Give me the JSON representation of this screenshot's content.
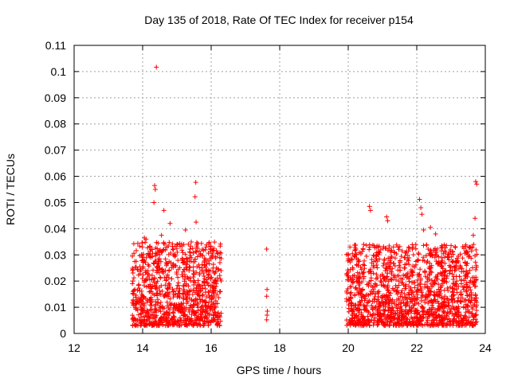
{
  "chart_data": {
    "type": "scatter",
    "title": "Day 135 of 2018, Rate Of TEC Index for receiver p154",
    "xlabel": "GPS time / hours",
    "ylabel": "ROTI / TECUs",
    "xlim": [
      12,
      24
    ],
    "ylim": [
      0,
      0.11
    ],
    "xticks": [
      12,
      14,
      16,
      18,
      20,
      22,
      24
    ],
    "xtick_labels": [
      "12",
      "14",
      "16",
      "18",
      "20",
      "22",
      "24"
    ],
    "yticks": [
      0,
      0.01,
      0.02,
      0.03,
      0.04,
      0.05,
      0.06,
      0.07,
      0.08,
      0.09,
      0.1,
      0.11
    ],
    "ytick_labels": [
      "0",
      "0.01",
      "0.02",
      "0.03",
      "0.04",
      "0.05",
      "0.06",
      "0.07",
      "0.08",
      "0.09",
      "0.1",
      "0.11"
    ],
    "grid": true,
    "marker": "+",
    "color": "#ff0000",
    "series": [
      {
        "name": "ROTI",
        "x": [
          14.4,
          14.35,
          14.37,
          14.33,
          15.55,
          15.53,
          15.56,
          14.8,
          14.62,
          15.25,
          17.62,
          17.63,
          17.62,
          17.64,
          17.63,
          17.62,
          20.62,
          20.65,
          21.12,
          21.15,
          22.08,
          22.12,
          22.15,
          22.4,
          22.55,
          23.72,
          23.75,
          23.7,
          23.65,
          22.2,
          13.7,
          14.05,
          14.1,
          14.55,
          15.2,
          15.85,
          16.2,
          20.05,
          20.45,
          21.45,
          22.85,
          23.55,
          23.6
        ],
        "y": [
          0.1017,
          0.0565,
          0.055,
          0.05,
          0.0577,
          0.0522,
          0.0425,
          0.042,
          0.047,
          0.0395,
          0.0322,
          0.0168,
          0.0142,
          0.0085,
          0.007,
          0.0052,
          0.0485,
          0.047,
          0.0445,
          0.043,
          0.0512,
          0.048,
          0.0455,
          0.0405,
          0.038,
          0.058,
          0.057,
          0.044,
          0.0375,
          0.0395,
          0.0295,
          0.0365,
          0.036,
          0.0375,
          0.034,
          0.033,
          0.0305,
          0.033,
          0.034,
          0.033,
          0.031,
          0.033,
          0.0315
        ]
      }
    ],
    "dense_clusters": [
      {
        "x_range": [
          13.7,
          16.3
        ],
        "y_range": [
          0.003,
          0.035
        ]
      },
      {
        "x_range": [
          19.95,
          23.75
        ],
        "y_range": [
          0.003,
          0.034
        ]
      }
    ]
  }
}
